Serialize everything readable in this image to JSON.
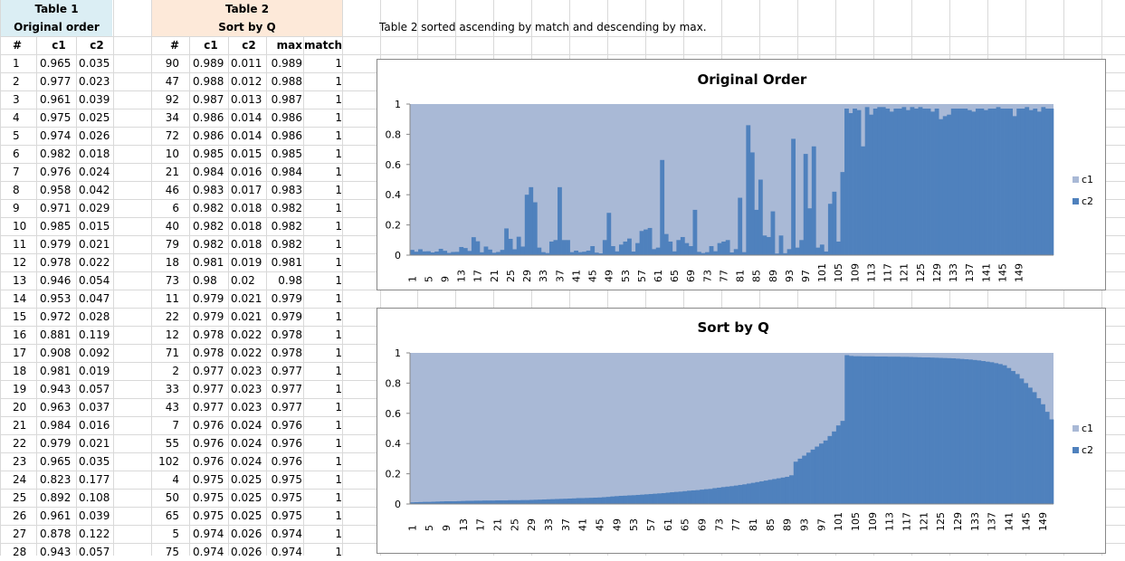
{
  "note": "Table 2 sorted ascending by match and descending by max.",
  "table1": {
    "title": "Table 1",
    "subtitle": "Original order",
    "headers": [
      "#",
      "c1",
      "c2"
    ],
    "rows": [
      [
        "1",
        "0.965",
        "0.035"
      ],
      [
        "2",
        "0.977",
        "0.023"
      ],
      [
        "3",
        "0.961",
        "0.039"
      ],
      [
        "4",
        "0.975",
        "0.025"
      ],
      [
        "5",
        "0.974",
        "0.026"
      ],
      [
        "6",
        "0.982",
        "0.018"
      ],
      [
        "7",
        "0.976",
        "0.024"
      ],
      [
        "8",
        "0.958",
        "0.042"
      ],
      [
        "9",
        "0.971",
        "0.029"
      ],
      [
        "10",
        "0.985",
        "0.015"
      ],
      [
        "11",
        "0.979",
        "0.021"
      ],
      [
        "12",
        "0.978",
        "0.022"
      ],
      [
        "13",
        "0.946",
        "0.054"
      ],
      [
        "14",
        "0.953",
        "0.047"
      ],
      [
        "15",
        "0.972",
        "0.028"
      ],
      [
        "16",
        "0.881",
        "0.119"
      ],
      [
        "17",
        "0.908",
        "0.092"
      ],
      [
        "18",
        "0.981",
        "0.019"
      ],
      [
        "19",
        "0.943",
        "0.057"
      ],
      [
        "20",
        "0.963",
        "0.037"
      ],
      [
        "21",
        "0.984",
        "0.016"
      ],
      [
        "22",
        "0.979",
        "0.021"
      ],
      [
        "23",
        "0.965",
        "0.035"
      ],
      [
        "24",
        "0.823",
        "0.177"
      ],
      [
        "25",
        "0.892",
        "0.108"
      ],
      [
        "26",
        "0.961",
        "0.039"
      ],
      [
        "27",
        "0.878",
        "0.122"
      ],
      [
        "28",
        "0.943",
        "0.057"
      ]
    ]
  },
  "table2": {
    "title": "Table 2",
    "subtitle": "Sort by Q",
    "headers": [
      "#",
      "c1",
      "c2",
      "max",
      "match"
    ],
    "rows": [
      [
        "90",
        "0.989",
        "0.011",
        "0.989",
        "1"
      ],
      [
        "47",
        "0.988",
        "0.012",
        "0.988",
        "1"
      ],
      [
        "92",
        "0.987",
        "0.013",
        "0.987",
        "1"
      ],
      [
        "34",
        "0.986",
        "0.014",
        "0.986",
        "1"
      ],
      [
        "72",
        "0.986",
        "0.014",
        "0.986",
        "1"
      ],
      [
        "10",
        "0.985",
        "0.015",
        "0.985",
        "1"
      ],
      [
        "21",
        "0.984",
        "0.016",
        "0.984",
        "1"
      ],
      [
        "46",
        "0.983",
        "0.017",
        "0.983",
        "1"
      ],
      [
        "6",
        "0.982",
        "0.018",
        "0.982",
        "1"
      ],
      [
        "40",
        "0.982",
        "0.018",
        "0.982",
        "1"
      ],
      [
        "79",
        "0.982",
        "0.018",
        "0.982",
        "1"
      ],
      [
        "18",
        "0.981",
        "0.019",
        "0.981",
        "1"
      ],
      [
        "73",
        "0.98",
        "0.02",
        "0.98",
        "1"
      ],
      [
        "11",
        "0.979",
        "0.021",
        "0.979",
        "1"
      ],
      [
        "22",
        "0.979",
        "0.021",
        "0.979",
        "1"
      ],
      [
        "12",
        "0.978",
        "0.022",
        "0.978",
        "1"
      ],
      [
        "71",
        "0.978",
        "0.022",
        "0.978",
        "1"
      ],
      [
        "2",
        "0.977",
        "0.023",
        "0.977",
        "1"
      ],
      [
        "33",
        "0.977",
        "0.023",
        "0.977",
        "1"
      ],
      [
        "43",
        "0.977",
        "0.023",
        "0.977",
        "1"
      ],
      [
        "7",
        "0.976",
        "0.024",
        "0.976",
        "1"
      ],
      [
        "55",
        "0.976",
        "0.024",
        "0.976",
        "1"
      ],
      [
        "102",
        "0.976",
        "0.024",
        "0.976",
        "1"
      ],
      [
        "4",
        "0.975",
        "0.025",
        "0.975",
        "1"
      ],
      [
        "50",
        "0.975",
        "0.025",
        "0.975",
        "1"
      ],
      [
        "65",
        "0.975",
        "0.025",
        "0.975",
        "1"
      ],
      [
        "5",
        "0.974",
        "0.026",
        "0.974",
        "1"
      ],
      [
        "75",
        "0.974",
        "0.026",
        "0.974",
        "1"
      ]
    ]
  },
  "chart_data": [
    {
      "type": "bar",
      "stacked": true,
      "title": "Original Order",
      "x": [
        1,
        149,
        4
      ],
      "yticks": [
        "0",
        "0.2",
        "0.4",
        "0.6",
        "0.8",
        "1"
      ],
      "ylim": [
        0,
        1
      ],
      "legend": [
        "c1",
        "c2"
      ],
      "legend_position": "right",
      "colors": {
        "c1": "#a9b9d6",
        "c2": "#4f81bd"
      },
      "c2_values": [
        0.035,
        0.023,
        0.039,
        0.025,
        0.026,
        0.018,
        0.024,
        0.042,
        0.029,
        0.015,
        0.021,
        0.022,
        0.054,
        0.047,
        0.028,
        0.119,
        0.092,
        0.019,
        0.057,
        0.037,
        0.016,
        0.021,
        0.035,
        0.177,
        0.108,
        0.039,
        0.122,
        0.057,
        0.4,
        0.45,
        0.35,
        0.05,
        0.02,
        0.014,
        0.09,
        0.1,
        0.45,
        0.1,
        0.1,
        0.02,
        0.03,
        0.02,
        0.023,
        0.03,
        0.06,
        0.017,
        0.012,
        0.1,
        0.28,
        0.06,
        0.025,
        0.07,
        0.09,
        0.11,
        0.024,
        0.08,
        0.16,
        0.17,
        0.18,
        0.04,
        0.05,
        0.63,
        0.14,
        0.09,
        0.025,
        0.1,
        0.12,
        0.08,
        0.06,
        0.3,
        0.022,
        0.014,
        0.02,
        0.06,
        0.026,
        0.08,
        0.09,
        0.1,
        0.018,
        0.04,
        0.38,
        0.02,
        0.86,
        0.68,
        0.3,
        0.5,
        0.13,
        0.12,
        0.29,
        0.011,
        0.13,
        0.013,
        0.04,
        0.77,
        0.05,
        0.1,
        0.67,
        0.31,
        0.72,
        0.05,
        0.07,
        0.024,
        0.34,
        0.42,
        0.09,
        0.55,
        0.97,
        0.94,
        0.97,
        0.96,
        0.72,
        0.98,
        0.93,
        0.97,
        0.98,
        0.98,
        0.97,
        0.95,
        0.97,
        0.97,
        0.98,
        0.96,
        0.98,
        0.97,
        0.98,
        0.97,
        0.97,
        0.95,
        0.97,
        0.9,
        0.92,
        0.93,
        0.97,
        0.97,
        0.97,
        0.97,
        0.96,
        0.95,
        0.97,
        0.97,
        0.96,
        0.97,
        0.97,
        0.98,
        0.97,
        0.97,
        0.97,
        0.92,
        0.97,
        0.97,
        0.98,
        0.96,
        0.97,
        0.95,
        0.98,
        0.97,
        0.97
      ]
    },
    {
      "type": "bar",
      "stacked": true,
      "title": "Sort by Q",
      "x": [
        1,
        149,
        4
      ],
      "yticks": [
        "0",
        "0.2",
        "0.4",
        "0.6",
        "0.8",
        "1"
      ],
      "ylim": [
        0,
        1
      ],
      "legend": [
        "c1",
        "c2"
      ],
      "legend_position": "right",
      "colors": {
        "c1": "#a9b9d6",
        "c2": "#4f81bd"
      },
      "c2_values": [
        0.011,
        0.012,
        0.013,
        0.014,
        0.014,
        0.015,
        0.016,
        0.017,
        0.018,
        0.018,
        0.018,
        0.019,
        0.02,
        0.021,
        0.021,
        0.022,
        0.022,
        0.023,
        0.023,
        0.023,
        0.024,
        0.024,
        0.024,
        0.025,
        0.025,
        0.025,
        0.026,
        0.026,
        0.027,
        0.028,
        0.029,
        0.03,
        0.031,
        0.032,
        0.033,
        0.034,
        0.035,
        0.036,
        0.037,
        0.039,
        0.039,
        0.04,
        0.041,
        0.042,
        0.043,
        0.045,
        0.047,
        0.05,
        0.052,
        0.054,
        0.055,
        0.057,
        0.058,
        0.06,
        0.062,
        0.064,
        0.066,
        0.068,
        0.07,
        0.072,
        0.075,
        0.078,
        0.08,
        0.082,
        0.085,
        0.088,
        0.09,
        0.092,
        0.095,
        0.098,
        0.1,
        0.105,
        0.108,
        0.112,
        0.115,
        0.118,
        0.122,
        0.126,
        0.13,
        0.135,
        0.14,
        0.145,
        0.15,
        0.155,
        0.16,
        0.165,
        0.17,
        0.175,
        0.18,
        0.19,
        0.28,
        0.3,
        0.32,
        0.34,
        0.36,
        0.38,
        0.4,
        0.42,
        0.45,
        0.48,
        0.52,
        0.55,
        0.985,
        0.98,
        0.978,
        0.978,
        0.977,
        0.977,
        0.977,
        0.976,
        0.976,
        0.976,
        0.975,
        0.975,
        0.975,
        0.974,
        0.974,
        0.973,
        0.972,
        0.971,
        0.97,
        0.97,
        0.969,
        0.968,
        0.967,
        0.966,
        0.965,
        0.964,
        0.962,
        0.96,
        0.958,
        0.956,
        0.953,
        0.95,
        0.946,
        0.942,
        0.938,
        0.932,
        0.926,
        0.918,
        0.9,
        0.88,
        0.86,
        0.83,
        0.8,
        0.77,
        0.74,
        0.7,
        0.66,
        0.61,
        0.56
      ]
    }
  ]
}
